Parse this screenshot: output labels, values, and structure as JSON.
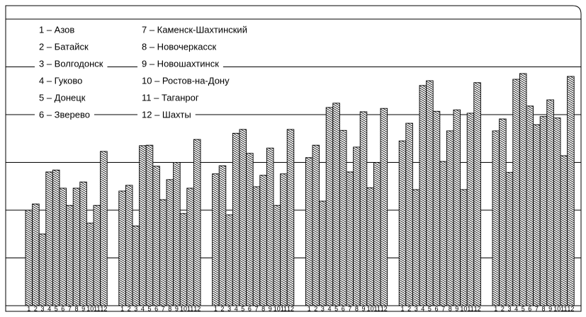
{
  "chart_data": {
    "type": "grouped-bar",
    "legend": [
      "1 – Азов",
      "2 – Батайск",
      "3 – Волгодонск",
      "4 – Гуково",
      "5 – Донецк",
      "6 – Зверево",
      "7 – Каменск-Шахтинский",
      "8 – Новочеркасск",
      "9 – Новошахтинск",
      "10 – Ростов-на-Дону",
      "11 – Таганрог",
      "12 – Шахты"
    ],
    "categories": [
      "1",
      "2",
      "3",
      "4",
      "5",
      "6",
      "7",
      "8",
      "9",
      "10",
      "11",
      "12"
    ],
    "groups": [
      {
        "values": [
          2.0,
          2.13,
          1.5,
          2.8,
          2.84,
          2.46,
          2.1,
          2.46,
          2.59,
          1.73,
          2.1,
          3.23
        ]
      },
      {
        "values": [
          2.4,
          2.52,
          1.67,
          3.35,
          3.36,
          2.92,
          2.22,
          2.64,
          3.0,
          1.93,
          2.46,
          3.48
        ]
      },
      {
        "values": [
          2.76,
          2.93,
          1.9,
          3.61,
          3.69,
          3.19,
          2.49,
          2.73,
          3.3,
          2.1,
          2.76,
          3.69
        ]
      },
      {
        "values": [
          3.1,
          3.36,
          2.19,
          4.15,
          4.24,
          3.67,
          2.8,
          3.32,
          4.06,
          2.47,
          3.0,
          4.13
        ]
      },
      {
        "values": [
          3.45,
          3.82,
          2.43,
          4.61,
          4.71,
          4.07,
          3.02,
          3.66,
          4.1,
          2.43,
          4.03,
          4.67
        ]
      },
      {
        "values": [
          3.66,
          3.91,
          2.79,
          4.74,
          4.86,
          4.18,
          3.79,
          3.96,
          4.31,
          3.93,
          3.14,
          4.8
        ]
      }
    ],
    "ylim": [
      0,
      6.25
    ],
    "yticks": [
      0,
      1,
      2,
      3,
      4,
      5,
      6
    ],
    "grid": true,
    "color": "#000000"
  }
}
